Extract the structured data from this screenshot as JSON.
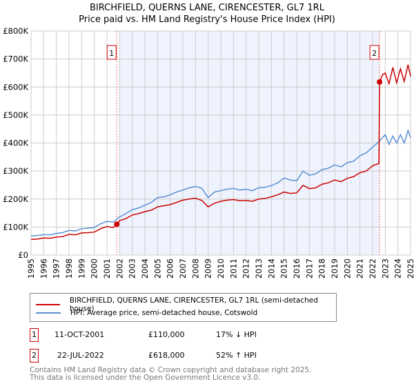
{
  "chart_data": {
    "type": "line",
    "title": "BIRCHFIELD, QUERNS LANE, CIRENCESTER, GL7 1RL",
    "subtitle": "Price paid vs. HM Land Registry's House Price Index (HPI)",
    "xlim": [
      1995,
      2025
    ],
    "ylim": [
      0,
      800000
    ],
    "x_ticks": [
      "1995",
      "1996",
      "1997",
      "1998",
      "1999",
      "2000",
      "2001",
      "2002",
      "2003",
      "2004",
      "2005",
      "2006",
      "2007",
      "2008",
      "2009",
      "2010",
      "2011",
      "2012",
      "2013",
      "2014",
      "2015",
      "2016",
      "2017",
      "2018",
      "2019",
      "2020",
      "2021",
      "2022",
      "2023",
      "2024",
      "2025"
    ],
    "y_ticks": [
      {
        "v": 0,
        "l": "£0"
      },
      {
        "v": 100000,
        "l": "£100K"
      },
      {
        "v": 200000,
        "l": "£200K"
      },
      {
        "v": 300000,
        "l": "£300K"
      },
      {
        "v": 400000,
        "l": "£400K"
      },
      {
        "v": 500000,
        "l": "£500K"
      },
      {
        "v": 600000,
        "l": "£600K"
      },
      {
        "v": 700000,
        "l": "£700K"
      },
      {
        "v": 800000,
        "l": "£800K"
      }
    ],
    "grid": true,
    "series": [
      {
        "name": "BIRCHFIELD, QUERNS LANE, CIRENCESTER, GL7 1RL (semi-detached house)",
        "color": "#cc0000",
        "x": [
          1995,
          1995.5,
          1996,
          1996.5,
          1997,
          1997.5,
          1998,
          1998.5,
          1999,
          1999.5,
          2000,
          2000.5,
          2001,
          2001.5,
          2001.78,
          2002,
          2002.5,
          2003,
          2003.5,
          2004,
          2004.5,
          2005,
          2005.5,
          2006,
          2006.5,
          2007,
          2007.5,
          2008,
          2008.5,
          2009,
          2009.5,
          2010,
          2010.5,
          2011,
          2011.5,
          2012,
          2012.5,
          2013,
          2013.5,
          2014,
          2014.5,
          2015,
          2015.5,
          2016,
          2016.5,
          2017,
          2017.5,
          2018,
          2018.5,
          2019,
          2019.5,
          2020,
          2020.5,
          2021,
          2021.5,
          2022,
          2022.5,
          2022.55,
          2022.8,
          2023,
          2023.3,
          2023.6,
          2023.9,
          2024.2,
          2024.5,
          2024.8,
          2025
        ],
        "y": [
          56000,
          57000,
          61000,
          60000,
          64000,
          66000,
          74000,
          72000,
          79000,
          80000,
          82000,
          94000,
          102000,
          98000,
          110000,
          123000,
          130000,
          143000,
          148000,
          155000,
          160000,
          172000,
          176000,
          180000,
          188000,
          196000,
          200000,
          203000,
          195000,
          172000,
          185000,
          192000,
          196000,
          198000,
          194000,
          195000,
          192000,
          200000,
          202000,
          208000,
          215000,
          225000,
          220000,
          222000,
          249000,
          237000,
          240000,
          253000,
          258000,
          268000,
          262000,
          274000,
          280000,
          294000,
          300000,
          319000,
          327000,
          618000,
          645000,
          650000,
          612000,
          670000,
          615000,
          665000,
          620000,
          680000,
          638000
        ]
      },
      {
        "name": "HPI: Average price, semi-detached house, Cotswold",
        "color": "#5b8fd4",
        "x": [
          1995,
          1995.5,
          1996,
          1996.5,
          1997,
          1997.5,
          1998,
          1998.5,
          1999,
          1999.5,
          2000,
          2000.5,
          2001,
          2001.5,
          2002,
          2002.5,
          2003,
          2003.5,
          2004,
          2004.5,
          2005,
          2005.5,
          2006,
          2006.5,
          2007,
          2007.5,
          2008,
          2008.5,
          2009,
          2009.5,
          2010,
          2010.5,
          2011,
          2011.5,
          2012,
          2012.5,
          2013,
          2013.5,
          2014,
          2014.5,
          2015,
          2015.5,
          2016,
          2016.5,
          2017,
          2017.5,
          2018,
          2018.5,
          2019,
          2019.5,
          2020,
          2020.5,
          2021,
          2021.5,
          2022,
          2022.5,
          2022.8,
          2023,
          2023.3,
          2023.6,
          2023.9,
          2024.2,
          2024.5,
          2024.8,
          2025
        ],
        "y": [
          68000,
          70000,
          73000,
          72000,
          77000,
          80000,
          88000,
          86000,
          94000,
          96000,
          98000,
          112000,
          120000,
          118000,
          136000,
          148000,
          162000,
          168000,
          178000,
          188000,
          205000,
          208000,
          215000,
          225000,
          232000,
          240000,
          245000,
          238000,
          205000,
          225000,
          230000,
          235000,
          238000,
          232000,
          235000,
          230000,
          240000,
          242000,
          248000,
          258000,
          275000,
          268000,
          265000,
          300000,
          285000,
          290000,
          305000,
          310000,
          322000,
          315000,
          330000,
          335000,
          355000,
          365000,
          385000,
          405000,
          420000,
          430000,
          395000,
          425000,
          400000,
          430000,
          400000,
          445000,
          420000
        ]
      }
    ],
    "annotations": [
      {
        "label": "1",
        "x": 2001.78,
        "y": 110000,
        "date": "11-OCT-2001",
        "price": "£110,000",
        "hpi": "17% ↓ HPI"
      },
      {
        "label": "2",
        "x": 2022.55,
        "y": 618000,
        "date": "22-JUL-2022",
        "price": "£618,000",
        "hpi": "52% ↑ HPI"
      }
    ],
    "shade_range": [
      2002,
      2022.55
    ],
    "legend_position": "below"
  },
  "footer": {
    "line1": "Contains HM Land Registry data © Crown copyright and database right 2025.",
    "line2": "This data is licensed under the Open Government Licence v3.0."
  }
}
